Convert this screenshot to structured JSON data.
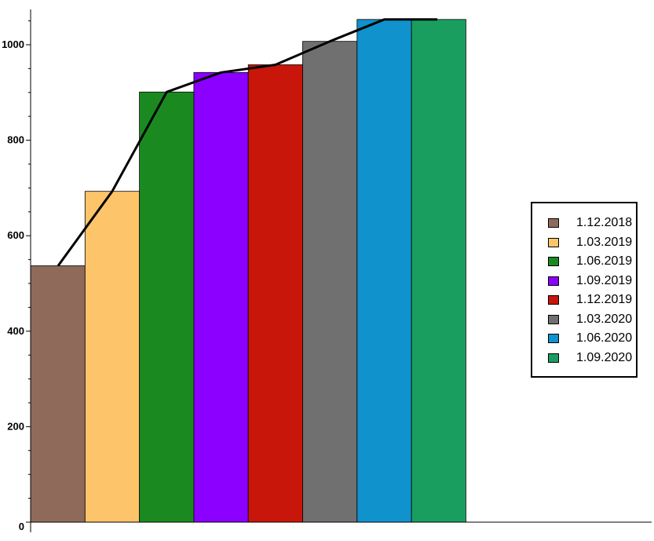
{
  "chart_data": {
    "type": "bar",
    "categories": [
      "1.12.2018",
      "1.03.2019",
      "1.06.2019",
      "1.09.2019",
      "1.12.2019",
      "1.03.2020",
      "1.06.2020",
      "1.09.2020"
    ],
    "values": [
      537,
      693,
      901,
      942,
      958,
      1007,
      1053,
      1053
    ],
    "colors": [
      "#8f6a5a",
      "#fdc46a",
      "#1a8a20",
      "#8b00ff",
      "#c8170a",
      "#707070",
      "#1092cc",
      "#1a9e60"
    ],
    "line_overlay": {
      "color": "#000000",
      "values": [
        537,
        693,
        901,
        942,
        958,
        1007,
        1053,
        1053
      ]
    },
    "yticks": [
      0,
      200,
      400,
      600,
      800,
      1000
    ],
    "ylim": [
      0,
      1075
    ],
    "grid": false,
    "legend_position": "right",
    "title": "",
    "xlabel": "",
    "ylabel": ""
  }
}
